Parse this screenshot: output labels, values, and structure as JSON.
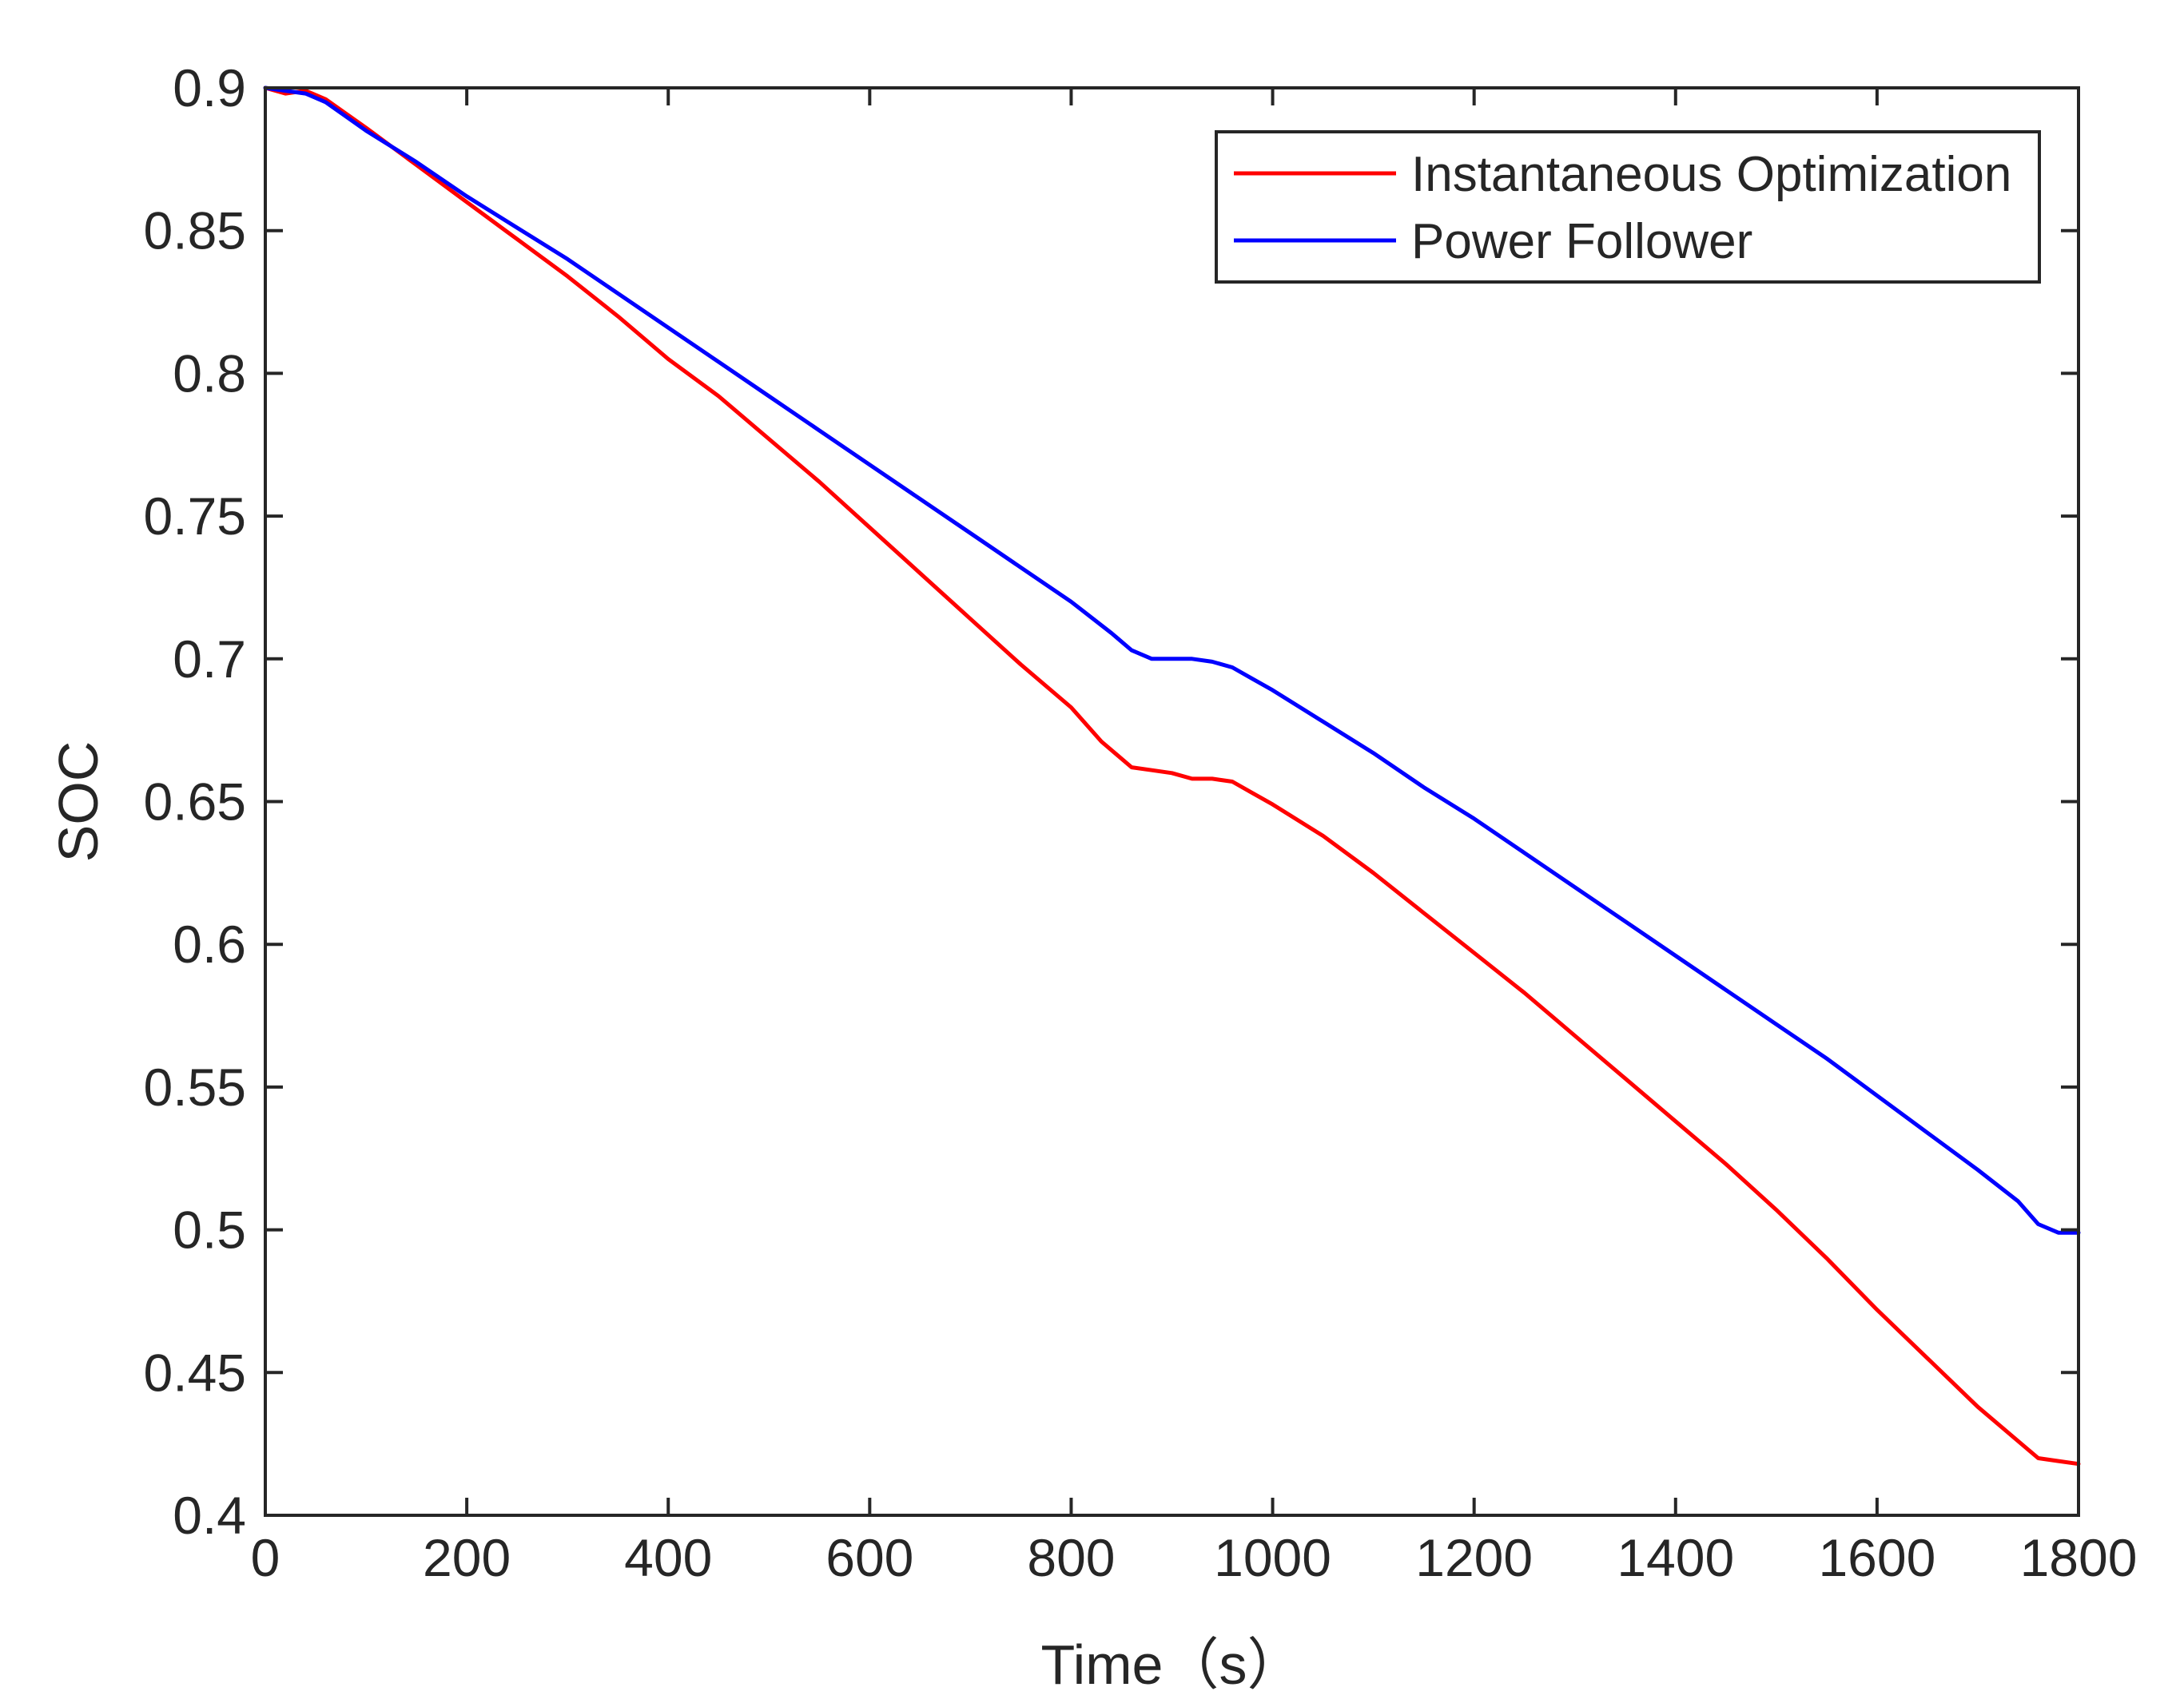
{
  "chart_data": {
    "type": "line",
    "title": "",
    "xlabel": "Time（s）",
    "ylabel": "SOC",
    "xlim": [
      0,
      1800
    ],
    "ylim": [
      0.4,
      0.9
    ],
    "x_ticks": [
      0,
      200,
      400,
      600,
      800,
      1000,
      1200,
      1400,
      1600,
      1800
    ],
    "x_tick_labels": [
      "0",
      "200",
      "400",
      "600",
      "800",
      "1000",
      "1200",
      "1400",
      "1600",
      "1800"
    ],
    "y_ticks": [
      0.4,
      0.45,
      0.5,
      0.55,
      0.6,
      0.65,
      0.7,
      0.75,
      0.8,
      0.85,
      0.9
    ],
    "y_tick_labels": [
      "0.4",
      "0.45",
      "0.5",
      "0.55",
      "0.6",
      "0.65",
      "0.7",
      "0.75",
      "0.8",
      "0.85",
      "0.9"
    ],
    "grid": false,
    "legend_position": "top-right",
    "series": [
      {
        "name": "Instantaneous Optimization",
        "color": "#ff0000",
        "x": [
          0,
          20,
          40,
          60,
          80,
          100,
          150,
          200,
          250,
          300,
          350,
          400,
          450,
          500,
          550,
          600,
          650,
          700,
          750,
          800,
          830,
          860,
          880,
          900,
          920,
          940,
          960,
          980,
          1000,
          1050,
          1100,
          1150,
          1200,
          1250,
          1300,
          1350,
          1400,
          1450,
          1500,
          1550,
          1600,
          1650,
          1700,
          1740,
          1760,
          1780,
          1800
        ],
        "y": [
          0.9,
          0.898,
          0.899,
          0.896,
          0.891,
          0.886,
          0.873,
          0.86,
          0.847,
          0.834,
          0.82,
          0.805,
          0.792,
          0.777,
          0.762,
          0.746,
          0.73,
          0.714,
          0.698,
          0.683,
          0.671,
          0.662,
          0.661,
          0.66,
          0.658,
          0.658,
          0.657,
          0.653,
          0.649,
          0.638,
          0.625,
          0.611,
          0.597,
          0.583,
          0.568,
          0.553,
          0.538,
          0.523,
          0.507,
          0.49,
          0.472,
          0.455,
          0.438,
          0.426,
          0.42,
          0.419,
          0.418
        ]
      },
      {
        "name": "Power Follower",
        "color": "#0000ff",
        "x": [
          0,
          20,
          40,
          60,
          80,
          100,
          150,
          200,
          250,
          300,
          350,
          400,
          450,
          500,
          550,
          600,
          650,
          700,
          750,
          800,
          840,
          860,
          880,
          900,
          920,
          940,
          960,
          980,
          1000,
          1050,
          1100,
          1150,
          1200,
          1250,
          1300,
          1350,
          1400,
          1450,
          1500,
          1550,
          1600,
          1650,
          1700,
          1740,
          1760,
          1780,
          1800
        ],
        "y": [
          0.9,
          0.899,
          0.898,
          0.895,
          0.89,
          0.885,
          0.874,
          0.862,
          0.851,
          0.84,
          0.828,
          0.816,
          0.804,
          0.792,
          0.78,
          0.768,
          0.756,
          0.744,
          0.732,
          0.72,
          0.709,
          0.703,
          0.7,
          0.7,
          0.7,
          0.699,
          0.697,
          0.693,
          0.689,
          0.678,
          0.667,
          0.655,
          0.644,
          0.632,
          0.62,
          0.608,
          0.596,
          0.584,
          0.572,
          0.56,
          0.547,
          0.534,
          0.521,
          0.51,
          0.502,
          0.499,
          0.499
        ]
      }
    ]
  }
}
